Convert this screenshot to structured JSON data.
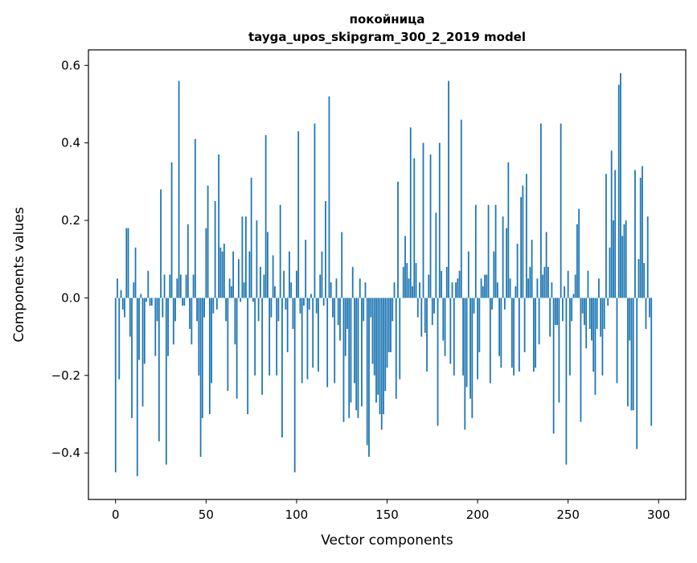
{
  "chart_data": {
    "type": "bar",
    "title_line1": "покойница",
    "title_line2": "tayga_upos_skipgram_300_2_2019 model",
    "xlabel": "Vector components",
    "ylabel": "Components values",
    "xlim": [
      -15,
      315
    ],
    "ylim": [
      -0.52,
      0.64
    ],
    "xticks": [
      0,
      50,
      100,
      150,
      200,
      250,
      300
    ],
    "xtick_labels": [
      "0",
      "50",
      "100",
      "150",
      "200",
      "250",
      "300"
    ],
    "yticks": [
      -0.4,
      -0.2,
      0.0,
      0.2,
      0.4,
      0.6
    ],
    "ytick_labels": [
      "−0.4",
      "−0.2",
      "0.0",
      "0.2",
      "0.4",
      "0.6"
    ],
    "grid": false,
    "bar_color": "#1f77b4",
    "values": [
      -0.45,
      0.05,
      -0.21,
      0.02,
      -0.03,
      -0.05,
      0.18,
      0.18,
      -0.1,
      -0.31,
      0.04,
      0.13,
      -0.46,
      -0.16,
      0.01,
      -0.28,
      -0.17,
      -0.01,
      0.07,
      -0.02,
      -0.02,
      0.0,
      -0.15,
      -0.06,
      -0.37,
      0.28,
      -0.05,
      0.06,
      -0.43,
      -0.15,
      0.06,
      0.35,
      -0.12,
      -0.06,
      0.05,
      0.56,
      0.06,
      -0.02,
      -0.02,
      0.06,
      0.19,
      -0.08,
      -0.12,
      0.06,
      0.41,
      -0.06,
      -0.2,
      -0.41,
      -0.31,
      -0.05,
      0.18,
      0.29,
      -0.3,
      -0.22,
      -0.04,
      0.25,
      -0.03,
      0.37,
      0.13,
      0.12,
      0.14,
      -0.06,
      -0.24,
      0.05,
      0.03,
      0.12,
      -0.12,
      -0.26,
      0.1,
      -0.01,
      0.21,
      0.04,
      0.21,
      -0.3,
      0.12,
      0.31,
      -0.01,
      -0.2,
      0.2,
      -0.06,
      0.08,
      -0.25,
      0.06,
      0.42,
      0.17,
      -0.2,
      -0.05,
      0.11,
      0.03,
      -0.2,
      -0.06,
      0.24,
      -0.36,
      0.07,
      -0.03,
      -0.14,
      0.12,
      0.04,
      -0.08,
      -0.45,
      0.07,
      0.43,
      -0.04,
      -0.22,
      -0.02,
      0.15,
      -0.21,
      -0.03,
      0.01,
      -0.18,
      0.45,
      -0.04,
      -0.19,
      0.06,
      0.12,
      -0.02,
      0.25,
      -0.23,
      0.52,
      0.04,
      -0.05,
      -0.22,
      0.05,
      -0.07,
      -0.11,
      0.17,
      -0.32,
      -0.15,
      -0.08,
      -0.31,
      -0.27,
      0.08,
      -0.22,
      -0.29,
      -0.31,
      0.05,
      -0.28,
      -0.06,
      0.04,
      -0.38,
      -0.41,
      -0.05,
      -0.17,
      -0.2,
      -0.27,
      -0.25,
      -0.3,
      -0.34,
      -0.3,
      -0.24,
      -0.18,
      -0.14,
      -0.14,
      -0.06,
      0.04,
      -0.26,
      0.3,
      -0.21,
      0.0,
      0.08,
      0.16,
      0.09,
      0.05,
      0.44,
      0.03,
      0.36,
      0.09,
      -0.05,
      0.04,
      -0.1,
      0.4,
      -0.09,
      -0.19,
      0.06,
      0.37,
      -0.07,
      -0.04,
      0.22,
      -0.33,
      0.4,
      0.07,
      -0.11,
      -0.15,
      0.08,
      0.56,
      -0.17,
      0.04,
      -0.2,
      0.04,
      0.05,
      0.07,
      0.46,
      -0.2,
      -0.34,
      -0.23,
      0.12,
      -0.26,
      -0.31,
      -0.04,
      0.24,
      -0.21,
      -0.14,
      0.05,
      0.03,
      0.06,
      0.06,
      0.24,
      -0.22,
      -0.03,
      0.12,
      0.24,
      0.04,
      -0.15,
      -0.18,
      0.21,
      -0.03,
      0.18,
      0.35,
      0.05,
      -0.18,
      -0.2,
      0.03,
      0.14,
      -0.19,
      0.26,
      0.29,
      -0.14,
      0.32,
      0.05,
      0.08,
      0.15,
      -0.19,
      -0.18,
      0.05,
      -0.12,
      0.45,
      0.06,
      0.08,
      0.17,
      0.08,
      -0.1,
      0.04,
      -0.35,
      -0.07,
      -0.07,
      -0.27,
      0.45,
      -0.06,
      0.03,
      -0.43,
      0.07,
      -0.2,
      -0.06,
      0.01,
      0.06,
      0.19,
      0.23,
      -0.32,
      -0.04,
      -0.07,
      -0.13,
      0.07,
      -0.08,
      -0.11,
      -0.19,
      -0.25,
      -0.08,
      0.05,
      -0.1,
      -0.2,
      -0.08,
      0.32,
      -0.02,
      0.13,
      0.38,
      0.2,
      0.33,
      -0.22,
      0.55,
      0.58,
      0.16,
      0.19,
      0.2,
      -0.28,
      -0.11,
      -0.29,
      -0.29,
      0.33,
      -0.39,
      0.1,
      0.31,
      0.34,
      0.09,
      -0.08,
      0.21,
      -0.05,
      -0.33
    ]
  }
}
